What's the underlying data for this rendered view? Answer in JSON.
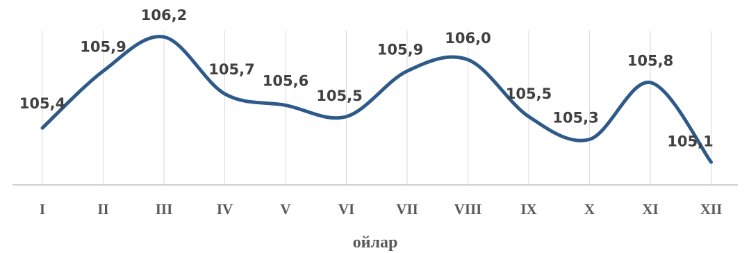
{
  "chart_data": {
    "type": "line",
    "categories": [
      "I",
      "II",
      "III",
      "IV",
      "V",
      "VI",
      "VII",
      "VIII",
      "IX",
      "X",
      "XI",
      "XII"
    ],
    "series": [
      {
        "values": [
          105.4,
          105.9,
          106.2,
          105.7,
          105.6,
          105.5,
          105.9,
          106.0,
          105.5,
          105.3,
          105.8,
          105.1
        ]
      }
    ],
    "data_labels": [
      "105,4",
      "105,9",
      "106,2",
      "105,7",
      "105,6",
      "105,5",
      "105,9",
      "106,0",
      "105,5",
      "105,3",
      "105,8",
      "105,1"
    ],
    "title": "",
    "xlabel": "ойлар",
    "ylabel": "",
    "ylim": [
      104.9,
      106.25
    ],
    "grid": "vertical",
    "legend": "none",
    "line_color": "#2e5a8a"
  }
}
